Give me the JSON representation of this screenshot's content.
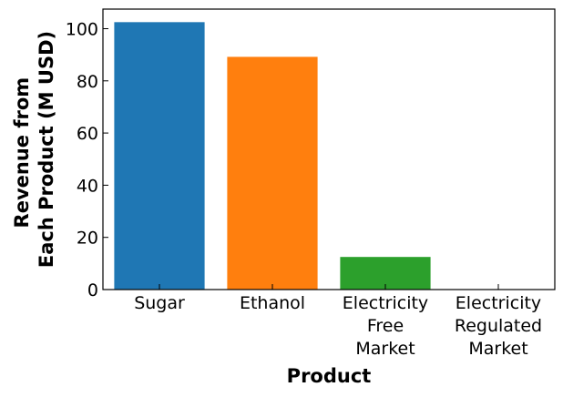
{
  "chart_data": {
    "type": "bar",
    "categories": [
      [
        "Sugar"
      ],
      [
        "Ethanol"
      ],
      [
        "Electricity",
        "Free",
        "Market"
      ],
      [
        "Electricity",
        "Regulated",
        "Market"
      ]
    ],
    "values": [
      102.5,
      89.2,
      12.5,
      0
    ],
    "colors": [
      "#1f77b4",
      "#ff7f0e",
      "#2ca02c",
      "#d62728"
    ],
    "xlabel": "Product",
    "ylabel_lines": [
      "Revenue from",
      "Each Product (M USD)"
    ],
    "ylim": [
      0,
      107.5
    ],
    "yticks": [
      0,
      20,
      40,
      60,
      80,
      100
    ],
    "grid": false
  }
}
